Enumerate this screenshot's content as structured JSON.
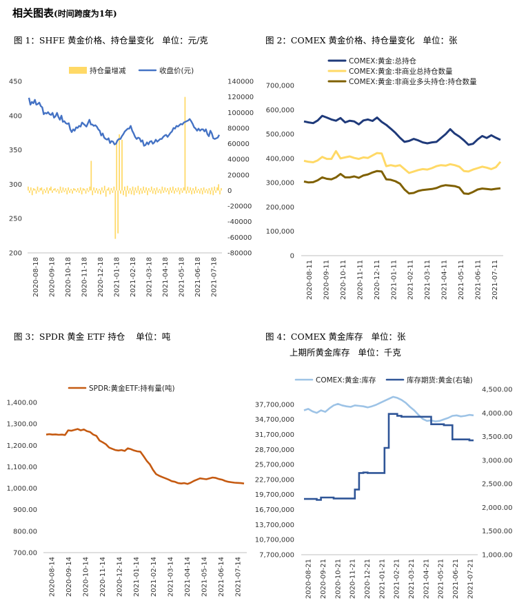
{
  "page_title": "相关图表",
  "page_title_note": "(时间跨度为1年)",
  "panels": {
    "p1": {
      "title": "图 1：SHFE 黄金价格、持仓量变化   单位：元/克"
    },
    "p2": {
      "title": "图 2：COMEX 黄金价格、持仓量变化   单位：张"
    },
    "p3": {
      "title": "图 3：SPDR 黄金 ETF 持仓    单位：吨"
    },
    "p4": {
      "title": "图 4：COMEX 黄金库存   单位：张",
      "title2": "上期所黄金库存   单位：千克"
    }
  },
  "colors": {
    "blue": "#4472c4",
    "navy": "#1f3a7a",
    "yellow": "#ffd966",
    "olive": "#7f6000",
    "orange": "#c55a11",
    "lightblue": "#9dc3e6",
    "darkblue": "#2f5597",
    "pale_yellow": "#ffe699"
  },
  "chart_data": [
    {
      "id": "chart1",
      "type": "bar+line",
      "x_ticks": [
        "2020-08-18",
        "2020-09-18",
        "2020-10-18",
        "2020-11-18",
        "2020-12-18",
        "2021-01-18",
        "2021-02-18",
        "2021-03-18",
        "2021-04-18",
        "2021-05-18",
        "2021-06-18",
        "2021-07-18"
      ],
      "y_left": {
        "ticks": [
          "450",
          "400",
          "350",
          "300",
          "250",
          "200"
        ],
        "lim": [
          200,
          450
        ]
      },
      "y_right": {
        "ticks": [
          "140000",
          "120000",
          "100000",
          "80000",
          "60000",
          "40000",
          "20000",
          "0",
          "-20000",
          "-40000",
          "-60000",
          "-80000"
        ],
        "lim": [
          -80000,
          140000
        ]
      },
      "series": [
        {
          "name": "持仓量增减",
          "type": "bar",
          "color": "#ffd966",
          "values": [
            5000,
            -3000,
            4000,
            -6000,
            3000,
            2000,
            -4000,
            5000,
            -2000,
            3000,
            4000,
            -5000,
            2000,
            -3000,
            4000,
            -4000,
            3000,
            5000,
            -3000,
            2000,
            3000,
            -2000,
            2000,
            -4000,
            5000,
            -3000,
            4000,
            -2000,
            3000,
            -5000,
            4000,
            -3000,
            2000,
            -4000,
            3000,
            2000,
            -2000,
            3000,
            -3000,
            4000,
            -5000,
            3000,
            2000,
            -4000,
            3000,
            -2000,
            5000,
            38000,
            -6000,
            4000,
            -3000,
            3000,
            -4000,
            2000,
            -5000,
            4000,
            -3000,
            6000,
            -8000,
            2000,
            4000,
            -5000,
            3000,
            -3000,
            5000,
            -62000,
            62000,
            -55000,
            72000,
            -4000,
            65000,
            -6000,
            5000,
            -8000,
            6000,
            -4000,
            3000,
            -5000,
            5000,
            -6000,
            4000,
            -3000,
            6000,
            -5000,
            3000,
            -4000,
            5000,
            -3000,
            4000,
            -6000,
            3000,
            -2000,
            5000,
            -4000,
            3000,
            -5000,
            4000,
            -3000,
            2000,
            -4000,
            5000,
            -3000,
            4000,
            -2000,
            3000,
            -5000,
            4000,
            -3000,
            5000,
            -4000,
            3000,
            -2000,
            4000,
            -5000,
            3000,
            -3000,
            4000,
            120000,
            -4000,
            5000,
            -3000,
            4000,
            -5000,
            3000,
            -4000,
            5000,
            -3000,
            2000,
            -4000,
            3000,
            -5000,
            4000,
            -3000,
            2000,
            -4000,
            3000,
            -5000,
            4000,
            -6000,
            5000,
            -3000,
            4000,
            8000,
            -5000,
            3000
          ]
        },
        {
          "name": "收盘价(元)",
          "type": "line",
          "color": "#4472c4",
          "values": [
            426,
            416,
            420,
            418,
            423,
            416,
            417,
            419,
            414,
            412,
            402,
            404,
            403,
            405,
            402,
            401,
            404,
            397,
            399,
            404,
            398,
            394,
            400,
            391,
            392,
            389,
            388,
            389,
            380,
            376,
            380,
            378,
            383,
            382,
            385,
            384,
            390,
            388,
            386,
            384,
            389,
            394,
            387,
            387,
            385,
            386,
            384,
            380,
            378,
            371,
            374,
            368,
            366,
            365,
            367,
            360,
            363,
            362,
            358,
            359,
            364,
            366,
            366,
            370,
            373,
            377,
            379,
            381,
            381,
            385,
            378,
            374,
            369,
            366,
            368,
            367,
            362,
            364,
            356,
            357,
            361,
            358,
            362,
            363,
            359,
            361,
            365,
            362,
            364,
            366,
            366,
            369,
            371,
            372,
            369,
            372,
            375,
            377,
            382,
            381,
            385,
            384,
            386,
            388,
            387,
            390,
            391,
            392,
            393,
            395,
            392,
            388,
            383,
            381,
            378,
            381,
            378,
            380,
            380,
            377,
            380,
            373,
            370,
            378,
            374,
            367,
            366,
            367,
            368,
            372
          ]
        }
      ]
    },
    {
      "id": "chart2",
      "type": "line",
      "x_ticks": [
        "2020-08-11",
        "2020-09-11",
        "2020-10-11",
        "2020-11-11",
        "2020-12-11",
        "2021-01-11",
        "2021-02-11",
        "2021-03-11",
        "2021-04-11",
        "2021-05-11",
        "2021-06-11",
        "2021-07-11"
      ],
      "y": {
        "ticks": [
          "700,000",
          "600,000",
          "500,000",
          "400,000",
          "300,000",
          "200,000",
          "100,000",
          "0"
        ],
        "lim": [
          0,
          700000
        ]
      },
      "series": [
        {
          "name": "COMEX:黄金:总持仓",
          "color": "#1f3a7a",
          "values": [
            552000,
            548000,
            545000,
            556000,
            575000,
            568000,
            560000,
            555000,
            566000,
            548000,
            555000,
            552000,
            540000,
            556000,
            560000,
            554000,
            568000,
            550000,
            538000,
            522000,
            505000,
            485000,
            468000,
            472000,
            480000,
            474000,
            466000,
            462000,
            466000,
            468000,
            484000,
            500000,
            520000,
            502000,
            490000,
            474000,
            456000,
            460000,
            478000,
            492000,
            484000,
            495000,
            485000,
            476000
          ]
        },
        {
          "name": "COMEX:黄金:非商业总持仓数量",
          "color": "#ffd966",
          "values": [
            390000,
            386000,
            384000,
            392000,
            406000,
            398000,
            398000,
            430000,
            400000,
            404000,
            408000,
            402000,
            398000,
            404000,
            402000,
            412000,
            422000,
            420000,
            368000,
            372000,
            368000,
            372000,
            356000,
            340000,
            346000,
            352000,
            356000,
            354000,
            360000,
            368000,
            372000,
            370000,
            376000,
            372000,
            366000,
            348000,
            346000,
            354000,
            360000,
            366000,
            362000,
            356000,
            364000,
            386000
          ]
        },
        {
          "name": "COMEX:黄金:非商业多头持仓:持仓数量",
          "color": "#7f6000",
          "values": [
            305000,
            301000,
            302000,
            310000,
            322000,
            316000,
            314000,
            322000,
            336000,
            322000,
            322000,
            326000,
            320000,
            330000,
            334000,
            342000,
            348000,
            346000,
            314000,
            312000,
            306000,
            296000,
            272000,
            256000,
            258000,
            266000,
            270000,
            272000,
            274000,
            278000,
            286000,
            290000,
            288000,
            286000,
            280000,
            256000,
            254000,
            262000,
            272000,
            276000,
            274000,
            272000,
            275000,
            277000
          ]
        }
      ]
    },
    {
      "id": "chart3",
      "type": "line",
      "x_ticks": [
        "2020-08-14",
        "2020-09-14",
        "2020-10-14",
        "2020-11-14",
        "2020-12-14",
        "2021-01-14",
        "2021-02-14",
        "2021-03-14",
        "2021-04-14",
        "2021-05-14",
        "2021-06-14",
        "2021-07-14"
      ],
      "y": {
        "ticks": [
          "1,400.00",
          "1,300.00",
          "1,200.00",
          "1,100.00",
          "1,000.00",
          "900.00",
          "800.00",
          "700.00"
        ],
        "lim": [
          700,
          1400
        ]
      },
      "series": [
        {
          "name": "SPDR:黄金ETF:持有量(吨)",
          "color": "#c55a11",
          "values": [
            1250,
            1252,
            1250,
            1251,
            1249,
            1250,
            1248,
            1270,
            1268,
            1272,
            1276,
            1270,
            1274,
            1266,
            1262,
            1250,
            1244,
            1222,
            1214,
            1205,
            1190,
            1184,
            1178,
            1176,
            1178,
            1174,
            1186,
            1182,
            1176,
            1172,
            1170,
            1150,
            1128,
            1112,
            1086,
            1066,
            1058,
            1052,
            1046,
            1040,
            1033,
            1030,
            1024,
            1022,
            1024,
            1020,
            1026,
            1034,
            1040,
            1046,
            1044,
            1042,
            1046,
            1050,
            1048,
            1043,
            1040,
            1034,
            1030,
            1028,
            1026,
            1025,
            1024,
            1022
          ]
        }
      ]
    },
    {
      "id": "chart4",
      "type": "line-dual-axis",
      "x_ticks": [
        "2020-08-21",
        "2020-09-21",
        "2020-10-21",
        "2020-11-21",
        "2020-12-21",
        "2021-01-21",
        "2021-02-21",
        "2021-03-21",
        "2021-04-21",
        "2021-05-21",
        "2021-06-21",
        "2021-07-21"
      ],
      "y_left": {
        "ticks": [
          "37,700,000",
          "34,700,000",
          "31,700,000",
          "28,700,000",
          "25,700,000",
          "22,700,000",
          "19,700,000",
          "16,700,000",
          "13,700,000",
          "10,700,000",
          "7,700,000"
        ],
        "lim": [
          7700000,
          40700000
        ]
      },
      "y_right": {
        "ticks": [
          "4,500.00",
          "4,000.00",
          "3,500.00",
          "3,000.00",
          "2,500.00",
          "2,000.00",
          "1,500.00",
          "1,000.00"
        ],
        "lim": [
          1000,
          4500
        ]
      },
      "series": [
        {
          "name": "COMEX:黄金:库存",
          "color": "#9dc3e6",
          "axis": "left",
          "values": [
            36500000,
            36800000,
            36300000,
            36000000,
            36500000,
            36200000,
            36900000,
            37500000,
            37800000,
            37500000,
            37300000,
            37200000,
            37500000,
            37400000,
            37300000,
            37100000,
            37300000,
            37600000,
            38000000,
            38400000,
            38800000,
            39200000,
            39000000,
            38600000,
            38000000,
            37200000,
            36500000,
            35600000,
            34800000,
            34400000,
            34500000,
            34300000,
            34400000,
            34700000,
            35000000,
            35400000,
            35500000,
            35300000,
            35400000,
            35600000,
            35500000
          ]
        },
        {
          "name": "库存期货:黄金(右轴)",
          "color": "#2f5597",
          "axis": "right",
          "values": [
            2180,
            2180,
            2180,
            2160,
            2210,
            2210,
            2210,
            2190,
            2190,
            2190,
            2190,
            2190,
            2380,
            2730,
            2740,
            2730,
            2730,
            2730,
            2730,
            3260,
            3980,
            3980,
            3940,
            3920,
            3920,
            3920,
            3920,
            3920,
            3920,
            3920,
            3760,
            3760,
            3760,
            3740,
            3740,
            3440,
            3440,
            3440,
            3440,
            3420,
            3420
          ]
        }
      ]
    }
  ]
}
